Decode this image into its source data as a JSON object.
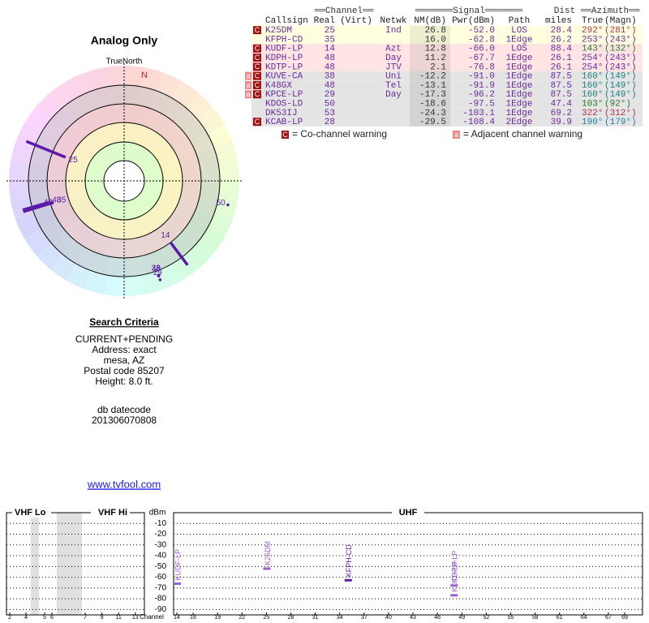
{
  "radar": {
    "title": "Analog Only",
    "north_label": "TrueNorth",
    "n_marker": "N",
    "color": "#5b1aa8",
    "points": [
      {
        "label": "25",
        "azimuth": 292,
        "nm": 26.8
      },
      {
        "label": "35",
        "azimuth": 253,
        "nm": 16.0
      },
      {
        "label": "14",
        "azimuth": 143,
        "nm": 12.8
      },
      {
        "label": "48",
        "azimuth": 254,
        "nm": 11.2
      },
      {
        "label": "48",
        "azimuth": 254,
        "nm": 2.1
      },
      {
        "label": "38",
        "azimuth": 160,
        "nm": -12.2
      },
      {
        "label": "48",
        "azimuth": 160,
        "nm": -13.1
      },
      {
        "label": "29",
        "azimuth": 160,
        "nm": -17.3
      },
      {
        "label": "50",
        "azimuth": 103,
        "nm": -18.6
      }
    ]
  },
  "table": {
    "group_headers": [
      "══Channel══",
      "═══════Signal═══════",
      "Dist",
      "══Azimuth══"
    ],
    "columns": [
      "Callsign",
      "Real",
      "(Virt)",
      "Netwk",
      "NM(dB)",
      "Pwr(dBm)",
      "Path",
      "miles",
      "True",
      "(Magn)"
    ],
    "rows": [
      {
        "warnings": [
          "C"
        ],
        "bg": "#ffffe0",
        "az_color": "#b03050",
        "cells": [
          "K25DM",
          "25",
          null,
          "Ind",
          "26.8",
          "-52.0",
          "LOS",
          "28.4",
          "292°",
          "(281°)"
        ]
      },
      {
        "warnings": [],
        "bg": "#ffffe0",
        "az_color": "#6a2a9a",
        "cells": [
          "KFPH-CD",
          "35",
          null,
          null,
          "16.0",
          "-62.8",
          "1Edge",
          "26.2",
          "253°",
          "(243°)"
        ]
      },
      {
        "warnings": [
          "C"
        ],
        "bg": "#ffe4e4",
        "az_color": "#2a7a2a",
        "cells": [
          "KUDF-LP",
          "14",
          null,
          "Azt",
          "12.8",
          "-66.0",
          "LOS",
          "88.4",
          "143°",
          "(132°)"
        ]
      },
      {
        "warnings": [
          "C"
        ],
        "bg": "#ffe4e4",
        "az_color": "#6a2a9a",
        "cells": [
          "KDPH-LP",
          "48",
          null,
          "Day",
          "11.2",
          "-67.7",
          "1Edge",
          "26.1",
          "254°",
          "(243°)"
        ]
      },
      {
        "warnings": [
          "C"
        ],
        "bg": "#ffe4e4",
        "az_color": "#6a2a9a",
        "cells": [
          "KDTP-LP",
          "48",
          null,
          "JTV",
          "2.1",
          "-76.8",
          "1Edge",
          "26.1",
          "254°",
          "(243°)"
        ]
      },
      {
        "warnings": [
          "C",
          "a"
        ],
        "bg": "#e4e4e4",
        "az_color": "#1a8080",
        "cells": [
          "KUVE-CA",
          "38",
          null,
          "Uni",
          "-12.2",
          "-91.0",
          "1Edge",
          "87.5",
          "160°",
          "(149°)"
        ]
      },
      {
        "warnings": [
          "C",
          "a"
        ],
        "bg": "#e4e4e4",
        "az_color": "#1a8080",
        "cells": [
          "K48GX",
          "48",
          null,
          "Tel",
          "-13.1",
          "-91.9",
          "1Edge",
          "87.5",
          "160°",
          "(149°)"
        ]
      },
      {
        "warnings": [
          "C",
          "a"
        ],
        "bg": "#e4e4e4",
        "az_color": "#1a8080",
        "cells": [
          "KPCE-LP",
          "29",
          null,
          "Day",
          "-17.3",
          "-96.2",
          "1Edge",
          "87.5",
          "160°",
          "(149°)"
        ]
      },
      {
        "warnings": [],
        "bg": "#e4e4e4",
        "az_color": "#2a7a2a",
        "cells": [
          "KDOS-LD",
          "50",
          null,
          null,
          "-18.6",
          "-97.5",
          "1Edge",
          "47.4",
          "103°",
          "(92°)"
        ]
      },
      {
        "warnings": [],
        "bg": "#e4e4e4",
        "az_color": "#b03050",
        "cells": [
          "DK53IJ",
          "53",
          null,
          null,
          "-24.3",
          "-103.1",
          "1Edge",
          "69.2",
          "322°",
          "(312°)"
        ]
      },
      {
        "warnings": [
          "C"
        ],
        "bg": "#e4e4e4",
        "az_color": "#2080a0",
        "cells": [
          "KCAB-LP",
          "28",
          null,
          null,
          "-29.5",
          "-108.4",
          "2Edge",
          "39.9",
          "190°",
          "(179°)"
        ]
      }
    ],
    "legend": [
      {
        "icon": "C",
        "text": "= Co-channel warning"
      },
      {
        "icon": "a",
        "text": "= Adjacent channel warning"
      }
    ]
  },
  "search": {
    "title": "Search Criteria",
    "lines": [
      "CURRENT+PENDING",
      "Address: exact",
      "mesa, AZ",
      "Postal code 85207",
      "Height: 8.0 ft."
    ],
    "datecode_label": "db datecode",
    "datecode": "201306070808",
    "link": "www.tvfool.com"
  },
  "spectrum": {
    "bands": [
      "VHF Lo",
      "VHF Hi",
      "UHF"
    ],
    "y_label": "dBm",
    "x_label": "Channel",
    "ylim": [
      0,
      -95
    ],
    "yticks": [
      -10,
      -20,
      -30,
      -40,
      -50,
      -60,
      -70,
      -80,
      -90
    ],
    "vhf_ticks": [
      2,
      4,
      5,
      6,
      7,
      9,
      11,
      13
    ],
    "uhf_ticks": [
      14,
      16,
      19,
      22,
      25,
      28,
      31,
      34,
      37,
      40,
      43,
      46,
      49,
      52,
      55,
      58,
      61,
      64,
      67,
      69
    ],
    "color": "#9a60d0",
    "signals": [
      {
        "label": "KUDF-LP",
        "channel": 14,
        "dbm": -66.0
      },
      {
        "label": "K25DM",
        "channel": 25,
        "dbm": -52.0
      },
      {
        "label": "KFPH-CD",
        "channel": 35,
        "dbm": -62.8
      },
      {
        "label": "KDPH-LP",
        "channel": 48,
        "dbm": -67.7
      },
      {
        "label": "KDTP-LP",
        "channel": 48,
        "dbm": -76.8
      }
    ]
  }
}
